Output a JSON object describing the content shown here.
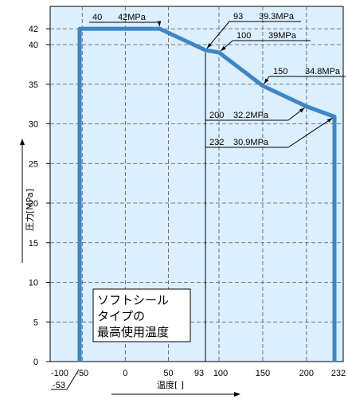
{
  "chart_data": {
    "type": "line",
    "title": "",
    "xlabel": "温度[ ]",
    "ylabel": "圧力[MPa]",
    "xlim": [
      -100,
      232
    ],
    "ylim": [
      0,
      44
    ],
    "x_ticks": [
      {
        "value": -100,
        "label": "-100"
      },
      {
        "value": -50,
        "label": "-50"
      },
      {
        "value": 0,
        "label": "0"
      },
      {
        "value": 50,
        "label": "50"
      },
      {
        "value": 93,
        "label": "93"
      },
      {
        "value": 100,
        "label": "100"
      },
      {
        "value": 150,
        "label": "150"
      },
      {
        "value": 200,
        "label": "200"
      },
      {
        "value": 232,
        "label": "232"
      }
    ],
    "extra_x_label": {
      "value": -53,
      "label": "-53"
    },
    "y_ticks": [
      0,
      5,
      10,
      15,
      20,
      25,
      30,
      35,
      40,
      42
    ],
    "grid": true,
    "series": [
      {
        "x": [
          -53,
          -53,
          40,
          93,
          100,
          150,
          200,
          232,
          232
        ],
        "y": [
          0,
          42,
          42,
          39.3,
          39,
          34.8,
          32.2,
          30.9,
          0
        ]
      }
    ],
    "annotations": [
      {
        "x": 40,
        "y": 42,
        "label_x": "40",
        "label_v": "42MPa"
      },
      {
        "x": 93,
        "y": 39.3,
        "label_x": "93",
        "label_v": "39.3MPa"
      },
      {
        "x": 100,
        "y": 39,
        "label_x": "100",
        "label_v": "39MPa"
      },
      {
        "x": 150,
        "y": 34.8,
        "label_x": "150",
        "label_v": "34.8MPa"
      },
      {
        "x": 200,
        "y": 32.2,
        "label_x": "200",
        "label_v": "32.2MPa"
      },
      {
        "x": 232,
        "y": 30.9,
        "label_x": "232",
        "label_v": "30.9MPa"
      }
    ],
    "callout": {
      "lines": [
        "ソフトシール",
        "タイプの",
        "最高使用温度"
      ],
      "x": 93
    },
    "colors": {
      "background": "#dcefff",
      "line": "#3d86c6",
      "grid": "#555555"
    }
  }
}
